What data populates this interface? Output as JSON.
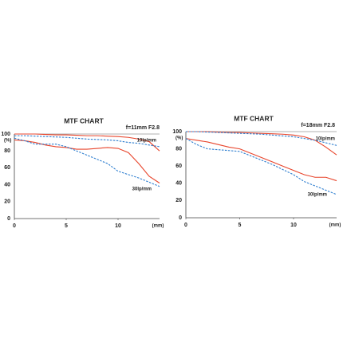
{
  "chart_data": [
    {
      "type": "line",
      "title": "MTF CHART",
      "subtitle": "f=11mm F2.8",
      "y_label": "(%)",
      "x_label": "(mm)",
      "x": [
        0,
        1,
        2,
        3,
        4,
        5,
        6,
        7,
        8,
        9,
        10,
        11,
        12,
        13,
        14
      ],
      "xlim": [
        0,
        14
      ],
      "xticks": [
        0,
        5,
        10
      ],
      "ylim": [
        0,
        100
      ],
      "yticks": [
        0,
        20,
        40,
        60,
        80,
        100
      ],
      "annotations": [
        "10lp/mm",
        "30lp/mm"
      ],
      "series": [
        {
          "color": "#e8452c",
          "dash": false,
          "values": [
            100,
            100,
            100,
            99.5,
            99,
            99,
            98.5,
            98,
            98,
            97.5,
            97,
            96,
            94,
            91,
            80
          ]
        },
        {
          "color": "#2f7fd0",
          "dash": true,
          "values": [
            98,
            98,
            97.5,
            97,
            96.5,
            96,
            95,
            94,
            93.5,
            93,
            92,
            90,
            89,
            87,
            85
          ]
        },
        {
          "color": "#e8452c",
          "dash": false,
          "values": [
            93,
            92,
            90,
            87,
            85,
            84,
            82,
            82,
            83,
            84,
            83,
            78,
            65,
            50,
            42
          ]
        },
        {
          "color": "#2f7fd0",
          "dash": true,
          "values": [
            95,
            92,
            88,
            88,
            88,
            85,
            80,
            75,
            70,
            65,
            56,
            52,
            48,
            43,
            38
          ]
        }
      ]
    },
    {
      "type": "line",
      "title": "MTF CHART",
      "subtitle": "f=18mm F2.8",
      "y_label": "(%)",
      "x_label": "(mm)",
      "x": [
        0,
        1,
        2,
        3,
        4,
        5,
        6,
        7,
        8,
        9,
        10,
        11,
        12,
        13,
        14
      ],
      "xlim": [
        0,
        14
      ],
      "xticks": [
        0,
        5,
        10
      ],
      "ylim": [
        0,
        100
      ],
      "yticks": [
        0,
        20,
        40,
        60,
        80,
        100
      ],
      "annotations": [
        "10lp/mm",
        "30lp/mm"
      ],
      "series": [
        {
          "color": "#e8452c",
          "dash": false,
          "values": [
            100,
            100,
            100,
            99.5,
            99,
            99,
            98.5,
            98,
            97.5,
            97,
            96,
            94,
            90,
            82,
            73
          ]
        },
        {
          "color": "#2f7fd0",
          "dash": true,
          "values": [
            100,
            100,
            99.5,
            99,
            98.5,
            98,
            97.5,
            97,
            96,
            95,
            94,
            92,
            90,
            87,
            84
          ]
        },
        {
          "color": "#e8452c",
          "dash": false,
          "values": [
            92,
            90,
            88,
            85,
            82,
            80,
            75,
            70,
            65,
            60,
            55,
            50,
            47,
            47,
            43
          ]
        },
        {
          "color": "#2f7fd0",
          "dash": true,
          "values": [
            92,
            85,
            80,
            79,
            78,
            77,
            72,
            67,
            62,
            56,
            50,
            42,
            37,
            32,
            27
          ]
        }
      ]
    }
  ]
}
